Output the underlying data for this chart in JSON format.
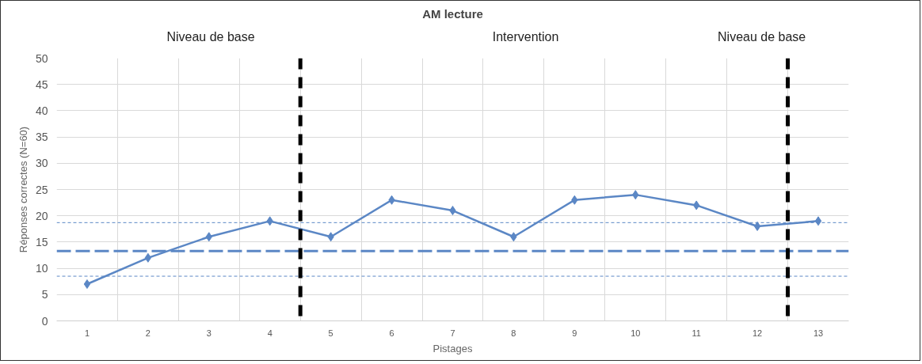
{
  "chart_data": {
    "type": "line",
    "title": "AM lecture",
    "xlabel": "Pistages",
    "ylabel": "Réponses correctes (N=60)",
    "x": [
      1,
      2,
      3,
      4,
      5,
      6,
      7,
      8,
      9,
      10,
      11,
      12,
      13
    ],
    "xlim": [
      0.5,
      13.5
    ],
    "xticks": [
      1,
      2,
      3,
      4,
      5,
      6,
      7,
      8,
      9,
      10,
      11,
      12,
      13
    ],
    "ylim": [
      0,
      50
    ],
    "yticks": [
      0,
      5,
      10,
      15,
      20,
      25,
      30,
      35,
      40,
      45,
      50
    ],
    "series": [
      {
        "color": "#5b87c5",
        "values": [
          7,
          12,
          16,
          19,
          16,
          23,
          21,
          16,
          23,
          24,
          22,
          18,
          19
        ]
      }
    ],
    "marker": "diamond",
    "line_style": "solid",
    "grid": true,
    "ref_lines": [
      {
        "axis": "y",
        "value": 13.3,
        "color": "#5b87c5",
        "line_style": "dashed"
      },
      {
        "axis": "y",
        "value": 18.7,
        "color": "#5b87c5",
        "line_style": "dotted"
      },
      {
        "axis": "y",
        "value": 8.5,
        "color": "#5b87c5",
        "line_style": "dotted"
      },
      {
        "axis": "x",
        "value": 4.5,
        "color": "#000000",
        "line_style": "dashed"
      },
      {
        "axis": "x",
        "value": 12.5,
        "color": "#000000",
        "line_style": "dashed"
      }
    ],
    "annotations": [
      "Niveau de base",
      "Intervention",
      "Niveau de base"
    ]
  }
}
